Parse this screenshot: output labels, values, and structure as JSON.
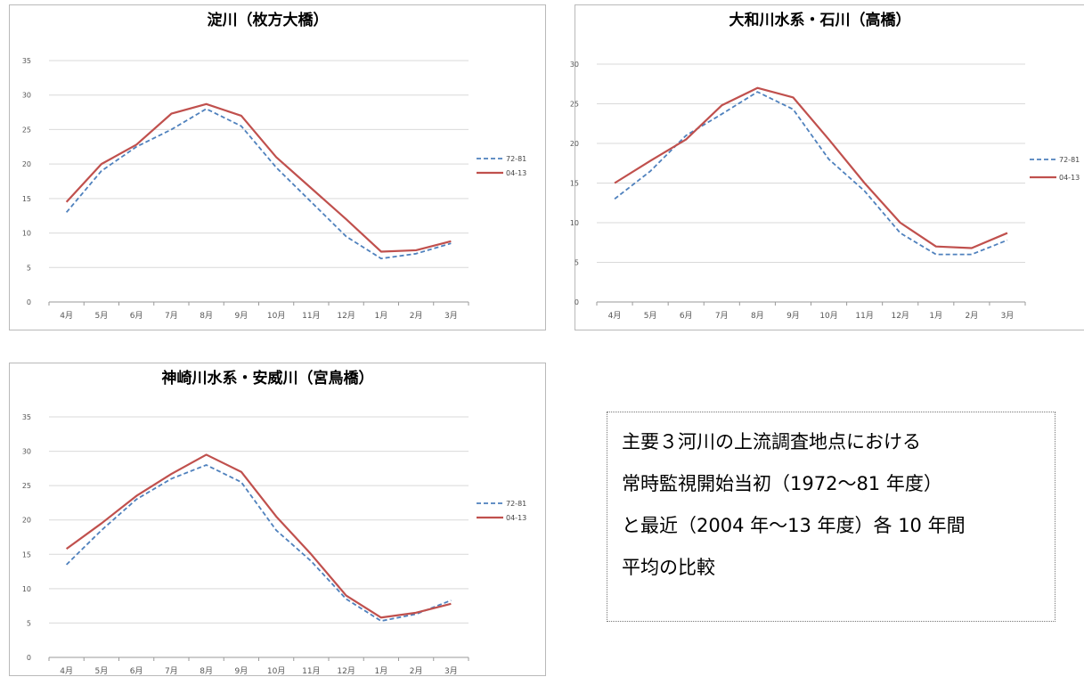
{
  "chart_data": [
    {
      "type": "line",
      "title": "淀川（枚方大橋）",
      "categories": [
        "4月",
        "5月",
        "6月",
        "7月",
        "8月",
        "9月",
        "10月",
        "11月",
        "12月",
        "1月",
        "2月",
        "3月"
      ],
      "ylim": [
        0,
        35
      ],
      "yticks": [
        "0",
        "5",
        "10",
        "15",
        "20",
        "25",
        "30",
        "35"
      ],
      "series": [
        {
          "name": "72-81",
          "values": [
            13.0,
            19.0,
            22.5,
            25.0,
            28.0,
            25.5,
            19.5,
            14.5,
            9.5,
            6.3,
            7.0,
            8.5
          ],
          "color": "#4f81bd",
          "dash": true
        },
        {
          "name": "04-13",
          "values": [
            14.5,
            20.0,
            22.8,
            27.3,
            28.7,
            27.0,
            21.0,
            16.5,
            12.0,
            7.3,
            7.5,
            8.8
          ],
          "color": "#c0504d",
          "dash": false
        }
      ],
      "legend": "right",
      "grid": true
    },
    {
      "type": "line",
      "title": "大和川水系・石川（高橋）",
      "categories": [
        "4月",
        "5月",
        "6月",
        "7月",
        "8月",
        "9月",
        "10月",
        "11月",
        "12月",
        "1月",
        "2月",
        "3月"
      ],
      "ylim": [
        0,
        30
      ],
      "yticks": [
        "0",
        "5",
        "10",
        "15",
        "20",
        "25",
        "30"
      ],
      "series": [
        {
          "name": "72-81",
          "values": [
            13.0,
            16.5,
            21.0,
            23.7,
            26.5,
            24.3,
            18.0,
            14.0,
            8.7,
            6.0,
            6.0,
            7.8
          ],
          "color": "#4f81bd",
          "dash": true
        },
        {
          "name": "04-13",
          "values": [
            15.0,
            17.8,
            20.5,
            24.8,
            27.0,
            25.8,
            20.5,
            15.0,
            10.0,
            7.0,
            6.8,
            8.7
          ],
          "color": "#c0504d",
          "dash": false
        }
      ],
      "legend": "right",
      "grid": true
    },
    {
      "type": "line",
      "title": "神崎川水系・安威川（宮鳥橋）",
      "categories": [
        "4月",
        "5月",
        "6月",
        "7月",
        "8月",
        "9月",
        "10月",
        "11月",
        "12月",
        "1月",
        "2月",
        "3月"
      ],
      "ylim": [
        0,
        35
      ],
      "yticks": [
        "0",
        "5",
        "10",
        "15",
        "20",
        "25",
        "30",
        "35"
      ],
      "series": [
        {
          "name": "72-81",
          "values": [
            13.5,
            18.5,
            23.0,
            26.0,
            28.0,
            25.5,
            18.5,
            14.0,
            8.5,
            5.3,
            6.3,
            8.3
          ],
          "color": "#4f81bd",
          "dash": true
        },
        {
          "name": "04-13",
          "values": [
            15.8,
            19.5,
            23.5,
            26.7,
            29.5,
            27.0,
            20.5,
            15.0,
            9.0,
            5.8,
            6.5,
            7.8
          ],
          "color": "#c0504d",
          "dash": false
        }
      ],
      "legend": "right",
      "grid": true
    }
  ],
  "note": {
    "lines": [
      "主要３河川の上流調査地点における",
      "常時監視開始当初（1972～81 年度）",
      "と最近（2004 年～13 年度）各 10 年間",
      "平均の比較"
    ]
  }
}
